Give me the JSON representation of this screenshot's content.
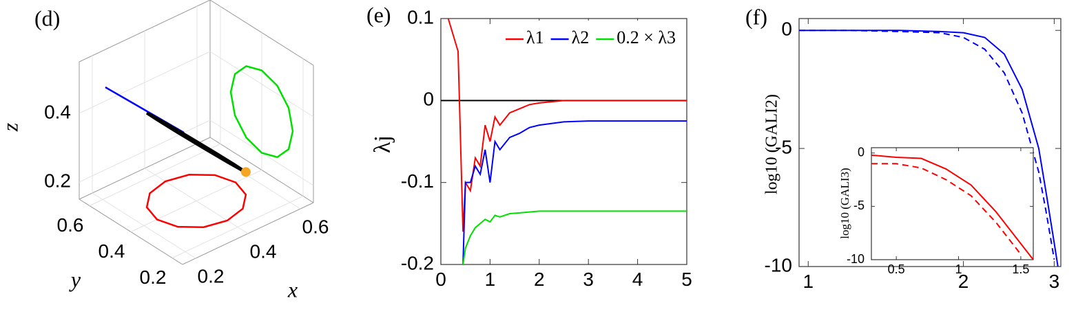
{
  "chart_data": [
    {
      "type": "line3d",
      "label": "(d)",
      "xlabel": "x",
      "ylabel": "y",
      "zlabel": "z",
      "xlim": [
        0.15,
        0.65
      ],
      "ylim": [
        0.15,
        0.65
      ],
      "zlim": [
        0.15,
        0.55
      ],
      "xticks": [
        0.2,
        0.4,
        0.6
      ],
      "yticks": [
        0.2,
        0.4,
        0.6
      ],
      "zticks": [
        0.2,
        0.4
      ],
      "grid": true,
      "closed": true,
      "series": [
        {
          "color": "#000000",
          "x": [
            0.55,
            0.53,
            0.475,
            0.4,
            0.325,
            0.27,
            0.25,
            0.27,
            0.325,
            0.4,
            0.475,
            0.53
          ],
          "y": [
            0.4,
            0.475,
            0.53,
            0.55,
            0.53,
            0.475,
            0.4,
            0.325,
            0.27,
            0.25,
            0.27,
            0.325
          ],
          "z": [
            0.2,
            0.216,
            0.26,
            0.32,
            0.38,
            0.424,
            0.44,
            0.424,
            0.38,
            0.32,
            0.26,
            0.216
          ],
          "projections": [
            {
              "plane": "xy",
              "color": "#ff0000"
            },
            {
              "plane": "xz",
              "color": "#0000ff"
            },
            {
              "plane": "yz",
              "color": "#00e000"
            }
          ]
        }
      ],
      "marker": {
        "x": 0.53,
        "y": 0.325,
        "z": 0.216,
        "color": "#f5a623"
      }
    },
    {
      "type": "line",
      "label": "(e)",
      "ylabel": "λj",
      "x": [
        0.15,
        0.35,
        0.45,
        0.5,
        0.6,
        0.7,
        0.8,
        0.9,
        1.0,
        1.1,
        1.2,
        1.4,
        1.6,
        1.8,
        2.0,
        2.5,
        3,
        4,
        5
      ],
      "xlim": [
        0,
        5
      ],
      "ylim": [
        -0.2,
        0.1
      ],
      "xticks": [
        0,
        1,
        2,
        3,
        4,
        5
      ],
      "yticks": [
        -0.2,
        -0.1,
        0,
        0.1
      ],
      "reference_line": {
        "y": 0,
        "color": "#000000"
      },
      "legend": "top-right",
      "series": [
        {
          "name": "λ1",
          "color": "#ff0000",
          "values": [
            0.1,
            0.06,
            -0.16,
            -0.1,
            -0.11,
            -0.07,
            -0.08,
            -0.03,
            -0.05,
            -0.02,
            -0.03,
            -0.015,
            -0.01,
            -0.005,
            -0.003,
            0,
            0,
            0,
            0
          ]
        },
        {
          "name": "λ2",
          "color": "#0000ff",
          "values": [
            null,
            null,
            -0.2,
            -0.1,
            -0.1,
            -0.08,
            -0.09,
            -0.06,
            -0.1,
            -0.05,
            -0.06,
            -0.045,
            -0.04,
            -0.033,
            -0.03,
            -0.026,
            -0.025,
            -0.025,
            -0.025
          ]
        },
        {
          "name": "0.2 × λ3",
          "color": "#00e000",
          "values": [
            null,
            null,
            -0.2,
            -0.18,
            -0.165,
            -0.155,
            -0.15,
            -0.145,
            -0.148,
            -0.14,
            -0.142,
            -0.138,
            -0.137,
            -0.136,
            -0.135,
            -0.135,
            -0.135,
            -0.135,
            -0.135
          ]
        }
      ]
    },
    {
      "type": "line",
      "label": "(f)",
      "ylabel": "log10 (GALI2)",
      "xscale": "log",
      "x": [
        0.96,
        1.2,
        1.5,
        1.8,
        2.0,
        2.2,
        2.4,
        2.6,
        2.8,
        2.9,
        3.0,
        3.05
      ],
      "xlim": [
        0.96,
        3.09
      ],
      "ylim": [
        -10,
        0.5
      ],
      "xticks": [
        1,
        2,
        3
      ],
      "yticks": [
        -10,
        -5,
        0
      ],
      "series": [
        {
          "color": "#0000ff",
          "values": [
            0,
            0,
            0,
            -0.05,
            -0.1,
            -0.3,
            -1,
            -2.5,
            -5,
            -7,
            -9,
            -10
          ]
        },
        {
          "color": "#0000ff",
          "dash": "dashed",
          "values": [
            0,
            0,
            -0.05,
            -0.1,
            -0.3,
            -0.8,
            -1.8,
            -3.5,
            -6,
            -7.8,
            -9.7,
            null
          ]
        }
      ],
      "inset": {
        "type": "line",
        "ylabel": "log10 (GALI3)",
        "x": [
          0.3,
          0.5,
          0.7,
          0.9,
          1.1,
          1.3,
          1.5,
          1.6
        ],
        "xlim": [
          0.3,
          1.6
        ],
        "ylim": [
          -10,
          0.5
        ],
        "xticks": [
          0.5,
          1,
          1.5
        ],
        "yticks": [
          -10,
          -5,
          0
        ],
        "series": [
          {
            "color": "#ff0000",
            "values": [
              -0.2,
              -0.4,
              -0.5,
              -1.5,
              -3,
              -5.5,
              -8.5,
              -10
            ]
          },
          {
            "color": "#ff0000",
            "dash": "dashed",
            "values": [
              -1,
              -1,
              -1.4,
              -2.5,
              -4,
              -6.5,
              -9.5,
              null
            ]
          }
        ]
      }
    }
  ]
}
